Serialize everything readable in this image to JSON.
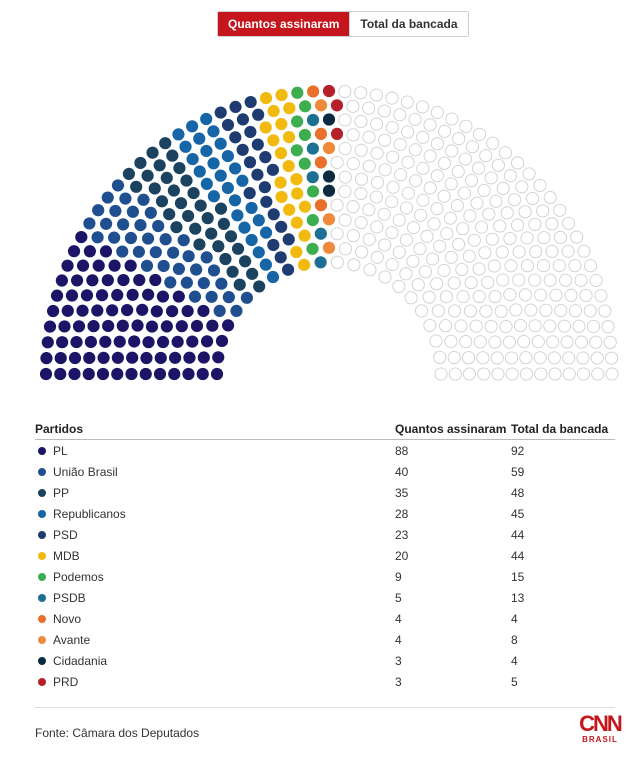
{
  "toggle": {
    "active_label": "Quantos assinaram",
    "inactive_label": "Total da bancada"
  },
  "table": {
    "headers": [
      "Partidos",
      "Quantos assinaram",
      "Total da bancada"
    ]
  },
  "source": "Fonte: Câmara dos Deputados",
  "logo": {
    "main": "CNN",
    "sub": "BRASIL"
  },
  "chart_data": {
    "type": "parliament",
    "total_seats": 513,
    "empty_seat_color": "#ffffff",
    "parties": [
      {
        "name": "PL",
        "signed": 88,
        "total": 92,
        "color": "#1c1466"
      },
      {
        "name": "União Brasil",
        "signed": 40,
        "total": 59,
        "color": "#1f4f8f"
      },
      {
        "name": "PP",
        "signed": 35,
        "total": 48,
        "color": "#1b4360"
      },
      {
        "name": "Republicanos",
        "signed": 28,
        "total": 45,
        "color": "#1565a7"
      },
      {
        "name": "PSD",
        "signed": 23,
        "total": 44,
        "color": "#1e3c72"
      },
      {
        "name": "MDB",
        "signed": 20,
        "total": 44,
        "color": "#f2b90f"
      },
      {
        "name": "Podemos",
        "signed": 9,
        "total": 15,
        "color": "#3dae4f"
      },
      {
        "name": "PSDB",
        "signed": 5,
        "total": 13,
        "color": "#1d6f94"
      },
      {
        "name": "Novo",
        "signed": 4,
        "total": 4,
        "color": "#e8702a"
      },
      {
        "name": "Avante",
        "signed": 4,
        "total": 8,
        "color": "#ef8a3c"
      },
      {
        "name": "Cidadania",
        "signed": 3,
        "total": 4,
        "color": "#0c2a40"
      },
      {
        "name": "PRD",
        "signed": 3,
        "total": 5,
        "color": "#b5202a"
      }
    ]
  }
}
